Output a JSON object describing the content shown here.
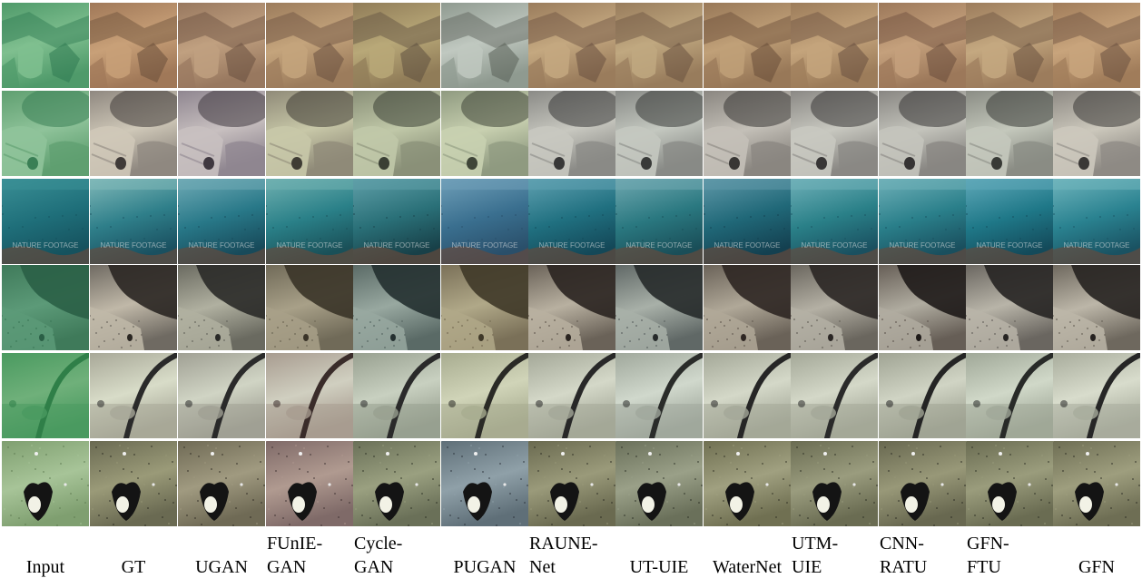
{
  "columns": [
    {
      "label": "Input",
      "tone": "input"
    },
    {
      "label": "GT",
      "tone": "gt"
    },
    {
      "label": "UGAN",
      "tone": "ugan"
    },
    {
      "label": "FUnIE-\nGAN",
      "tone": "funie"
    },
    {
      "label": "Cycle-\nGAN",
      "tone": "cycle"
    },
    {
      "label": "PUGAN",
      "tone": "pugan"
    },
    {
      "label": "RAUNE-\nNet",
      "tone": "raune"
    },
    {
      "label": "UT-UIE",
      "tone": "utuie"
    },
    {
      "label": "WaterNet",
      "tone": "waternet"
    },
    {
      "label": "UTM-\nUIE",
      "tone": "utm"
    },
    {
      "label": "CNN-\nRATU",
      "tone": "cnn"
    },
    {
      "label": "GFN-\nFTU",
      "tone": "gfnftu"
    },
    {
      "label": "GFN",
      "tone": "gfn"
    }
  ],
  "rows": [
    {
      "scene": "rocks-and-debris"
    },
    {
      "scene": "boulder-with-hole"
    },
    {
      "scene": "open-water-with-watermark",
      "watermark": "NATURE FOOTAGE"
    },
    {
      "scene": "dark-coral-mound"
    },
    {
      "scene": "cable-over-seabed"
    },
    {
      "scene": "sandy-floor-with-shell"
    }
  ],
  "palettes": {
    "input": {
      "r0": [
        "#7fbf8f",
        "#4f9a6a",
        "#2f7a52"
      ],
      "r1": [
        "#8fc39a",
        "#5f9f70",
        "#3a7f55"
      ],
      "r2": [
        "#3a8f95",
        "#1f6f7a",
        "#16525e"
      ],
      "r3": [
        "#5c9a78",
        "#3f7a5a",
        "#2a5f46"
      ],
      "r4": [
        "#6fb07a",
        "#4a9a60",
        "#2f7f48"
      ],
      "r5": [
        "#a7c498",
        "#7f9f70",
        "#5c7a50"
      ]
    },
    "gt": {
      "r0": [
        "#c8a078",
        "#a07858",
        "#6a4f3a"
      ],
      "r1": [
        "#cfc8b8",
        "#8f8880",
        "#3f3a38"
      ],
      "r2": [
        "#7fb8b8",
        "#2f7f8a",
        "#1a5060"
      ],
      "r3": [
        "#c0b8a8",
        "#6f6a62",
        "#2a2622"
      ],
      "r4": [
        "#d8dcc8",
        "#a8a898",
        "#2a2a2a"
      ],
      "r5": [
        "#9a9a78",
        "#6a6a52",
        "#2a2a20"
      ]
    },
    "ugan": {
      "r0": [
        "#c0a080",
        "#98785f",
        "#6a5040"
      ],
      "r1": [
        "#c8c0c0",
        "#8f8690",
        "#3f3840"
      ],
      "r2": [
        "#6faab5",
        "#287888",
        "#184a5a"
      ],
      "r3": [
        "#b0b0a0",
        "#6a6a60",
        "#2a2a28"
      ],
      "r4": [
        "#d0d4c4",
        "#a0a094",
        "#2a2a2a"
      ],
      "r5": [
        "#a09a80",
        "#6f6a55",
        "#2e2a22"
      ]
    },
    "funie": {
      "r0": [
        "#c4a47c",
        "#9c7c5c",
        "#6a5040"
      ],
      "r1": [
        "#c8c8a8",
        "#8f8a78",
        "#3f3c34"
      ],
      "r2": [
        "#6fb0b0",
        "#2a8088",
        "#1a5058"
      ],
      "r3": [
        "#a8a088",
        "#706a58",
        "#3a3428"
      ],
      "r4": [
        "#d0cfc0",
        "#a89c90",
        "#3a2c2a"
      ],
      "r5": [
        "#b09a90",
        "#7f6a68",
        "#3a2e2e"
      ]
    },
    "cycle": {
      "r0": [
        "#b8a878",
        "#907c58",
        "#5f5040"
      ],
      "r1": [
        "#c0c8a8",
        "#8a9078",
        "#3a3f34"
      ],
      "r2": [
        "#5f9fa8",
        "#2a7078",
        "#184048"
      ],
      "r3": [
        "#98a8a0",
        "#5a6a66",
        "#243030"
      ],
      "r4": [
        "#c8d0c0",
        "#98a090",
        "#2a2a2a"
      ],
      "r5": [
        "#9aa080",
        "#6a7058",
        "#2a2e22"
      ]
    },
    "pugan": {
      "r0": [
        "#c0c8c0",
        "#8f9a90",
        "#5a6058"
      ],
      "r1": [
        "#c8d0b0",
        "#8f9a80",
        "#3f4538"
      ],
      "r2": [
        "#6f9fb8",
        "#3a6f8f",
        "#2a4f6a"
      ],
      "r3": [
        "#b0a888",
        "#7a7058",
        "#3f3828"
      ],
      "r4": [
        "#d0d4b8",
        "#a8ac90",
        "#2a2a26"
      ],
      "r5": [
        "#8fa0a8",
        "#5f6f78",
        "#2a3038"
      ]
    },
    "raune": {
      "r0": [
        "#c4a880",
        "#9a7c5c",
        "#6a5040"
      ],
      "r1": [
        "#c8c8c0",
        "#8a8a86",
        "#383838"
      ],
      "r2": [
        "#5fa0b0",
        "#207080",
        "#144858"
      ],
      "r3": [
        "#b8b0a0",
        "#6a6258",
        "#2a2420"
      ],
      "r4": [
        "#d4d8c8",
        "#a4a898",
        "#282828"
      ],
      "r5": [
        "#9a9a7a",
        "#6a6a50",
        "#2a2a20"
      ]
    },
    "utuie": {
      "r0": [
        "#c0a880",
        "#987c5c",
        "#6a5240"
      ],
      "r1": [
        "#c4c8c0",
        "#888a86",
        "#383a38"
      ],
      "r2": [
        "#6fa8b0",
        "#2a7880",
        "#1a4e58"
      ],
      "r3": [
        "#a8b0a8",
        "#606866",
        "#262a2a"
      ],
      "r4": [
        "#d0d8cc",
        "#a0a89c",
        "#2a2c2a"
      ],
      "r5": [
        "#9aa088",
        "#6a705a",
        "#2a2e24"
      ]
    },
    "waternet": {
      "r0": [
        "#c0a078",
        "#987858",
        "#684c38"
      ],
      "r1": [
        "#c4c0b8",
        "#8a8680",
        "#383634"
      ],
      "r2": [
        "#5f98a8",
        "#206878",
        "#144050"
      ],
      "r3": [
        "#b0a898",
        "#6a6258",
        "#2e2622"
      ],
      "r4": [
        "#d4d8c8",
        "#a4a898",
        "#262626"
      ],
      "r5": [
        "#a0a080",
        "#707052",
        "#2e2e22"
      ]
    },
    "utm": {
      "r0": [
        "#c4a47c",
        "#9c7c5a",
        "#6a5040"
      ],
      "r1": [
        "#c8c8c0",
        "#8a8884",
        "#383636"
      ],
      "r2": [
        "#6fb0b8",
        "#2a8088",
        "#1a5060"
      ],
      "r3": [
        "#b4b0a4",
        "#6a665e",
        "#2a2624"
      ],
      "r4": [
        "#d4d8c8",
        "#a4a898",
        "#2a2a2a"
      ],
      "r5": [
        "#9a9c7e",
        "#6a6c52",
        "#2a2c22"
      ]
    },
    "cnn": {
      "r0": [
        "#c4a07c",
        "#9c785a",
        "#6a4c3c"
      ],
      "r1": [
        "#c4c4bc",
        "#888682",
        "#363434"
      ],
      "r2": [
        "#6fb0b8",
        "#2a7f8a",
        "#1a4f5e"
      ],
      "r3": [
        "#b0aca0",
        "#665e56",
        "#1e1a18"
      ],
      "r4": [
        "#d0d4c4",
        "#a0a494",
        "#242424"
      ],
      "r5": [
        "#989878",
        "#686850",
        "#282820"
      ]
    },
    "gfnftu": {
      "r0": [
        "#c4a880",
        "#9c7c5c",
        "#6a5240"
      ],
      "r1": [
        "#c4c8bc",
        "#8a8c84",
        "#383a36"
      ],
      "r2": [
        "#5fa8b8",
        "#1f7888",
        "#144a5a"
      ],
      "r3": [
        "#b8b4a8",
        "#6a6660",
        "#262422"
      ],
      "r4": [
        "#d0d8c8",
        "#a0a898",
        "#282a28"
      ],
      "r5": [
        "#9a9c7c",
        "#6a6c52",
        "#2a2c22"
      ]
    },
    "gfn": {
      "r0": [
        "#c8a47c",
        "#a07c5a",
        "#6a5040"
      ],
      "r1": [
        "#ccc8bc",
        "#8e8a84",
        "#3a3836"
      ],
      "r2": [
        "#6fb4bc",
        "#2a8290",
        "#1a5262"
      ],
      "r3": [
        "#bcb6a8",
        "#6e685e",
        "#262220"
      ],
      "r4": [
        "#d8dccc",
        "#a8ac9c",
        "#262626"
      ],
      "r5": [
        "#9e9e7e",
        "#6e6e54",
        "#2a2a22"
      ]
    }
  }
}
